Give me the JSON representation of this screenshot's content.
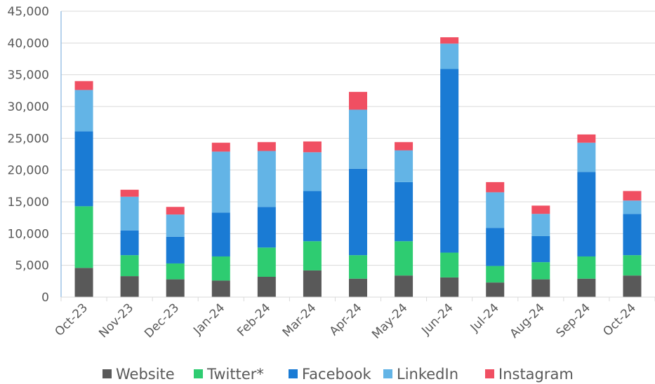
{
  "chart_data": {
    "type": "bar",
    "stacked": true,
    "categories": [
      "Oct-23",
      "Nov-23",
      "Dec-23",
      "Jan-24",
      "Feb-24",
      "Mar-24",
      "Apr-24",
      "May-24",
      "Jun-24",
      "Jul-24",
      "Aug-24",
      "Sep-24",
      "Oct-24"
    ],
    "series": [
      {
        "name": "Website",
        "color": "#595959",
        "values": [
          4600,
          3300,
          2800,
          2600,
          3200,
          4200,
          2900,
          3400,
          3100,
          2300,
          2800,
          2900,
          3400
        ]
      },
      {
        "name": "Twitter*",
        "color": "#2ecc71",
        "values": [
          9700,
          3300,
          2500,
          3800,
          4600,
          4600,
          3700,
          5400,
          3900,
          2600,
          2700,
          3500,
          3200
        ]
      },
      {
        "name": "Facebook",
        "color": "#1a7bd4",
        "values": [
          11800,
          3900,
          4200,
          6900,
          6400,
          7900,
          13600,
          9300,
          28900,
          6000,
          4100,
          13300,
          6500
        ]
      },
      {
        "name": "LinkedIn",
        "color": "#63b4e6",
        "values": [
          6500,
          5300,
          3500,
          9600,
          8800,
          6100,
          9300,
          5000,
          4000,
          5600,
          3500,
          4600,
          2100
        ]
      },
      {
        "name": "Instagram",
        "color": "#f04f62",
        "values": [
          1400,
          1100,
          1200,
          1400,
          1400,
          1700,
          2800,
          1300,
          1000,
          1600,
          1300,
          1300,
          1500
        ]
      }
    ],
    "ylim": [
      0,
      45000
    ],
    "yticks": [
      0,
      5000,
      10000,
      15000,
      20000,
      25000,
      30000,
      35000,
      40000,
      45000
    ],
    "ytick_labels": [
      "0",
      "5,000",
      "10,000",
      "15,000",
      "20,000",
      "25,000",
      "30,000",
      "35,000",
      "40,000",
      "45,000"
    ],
    "grid": true,
    "legend": "bottom"
  }
}
